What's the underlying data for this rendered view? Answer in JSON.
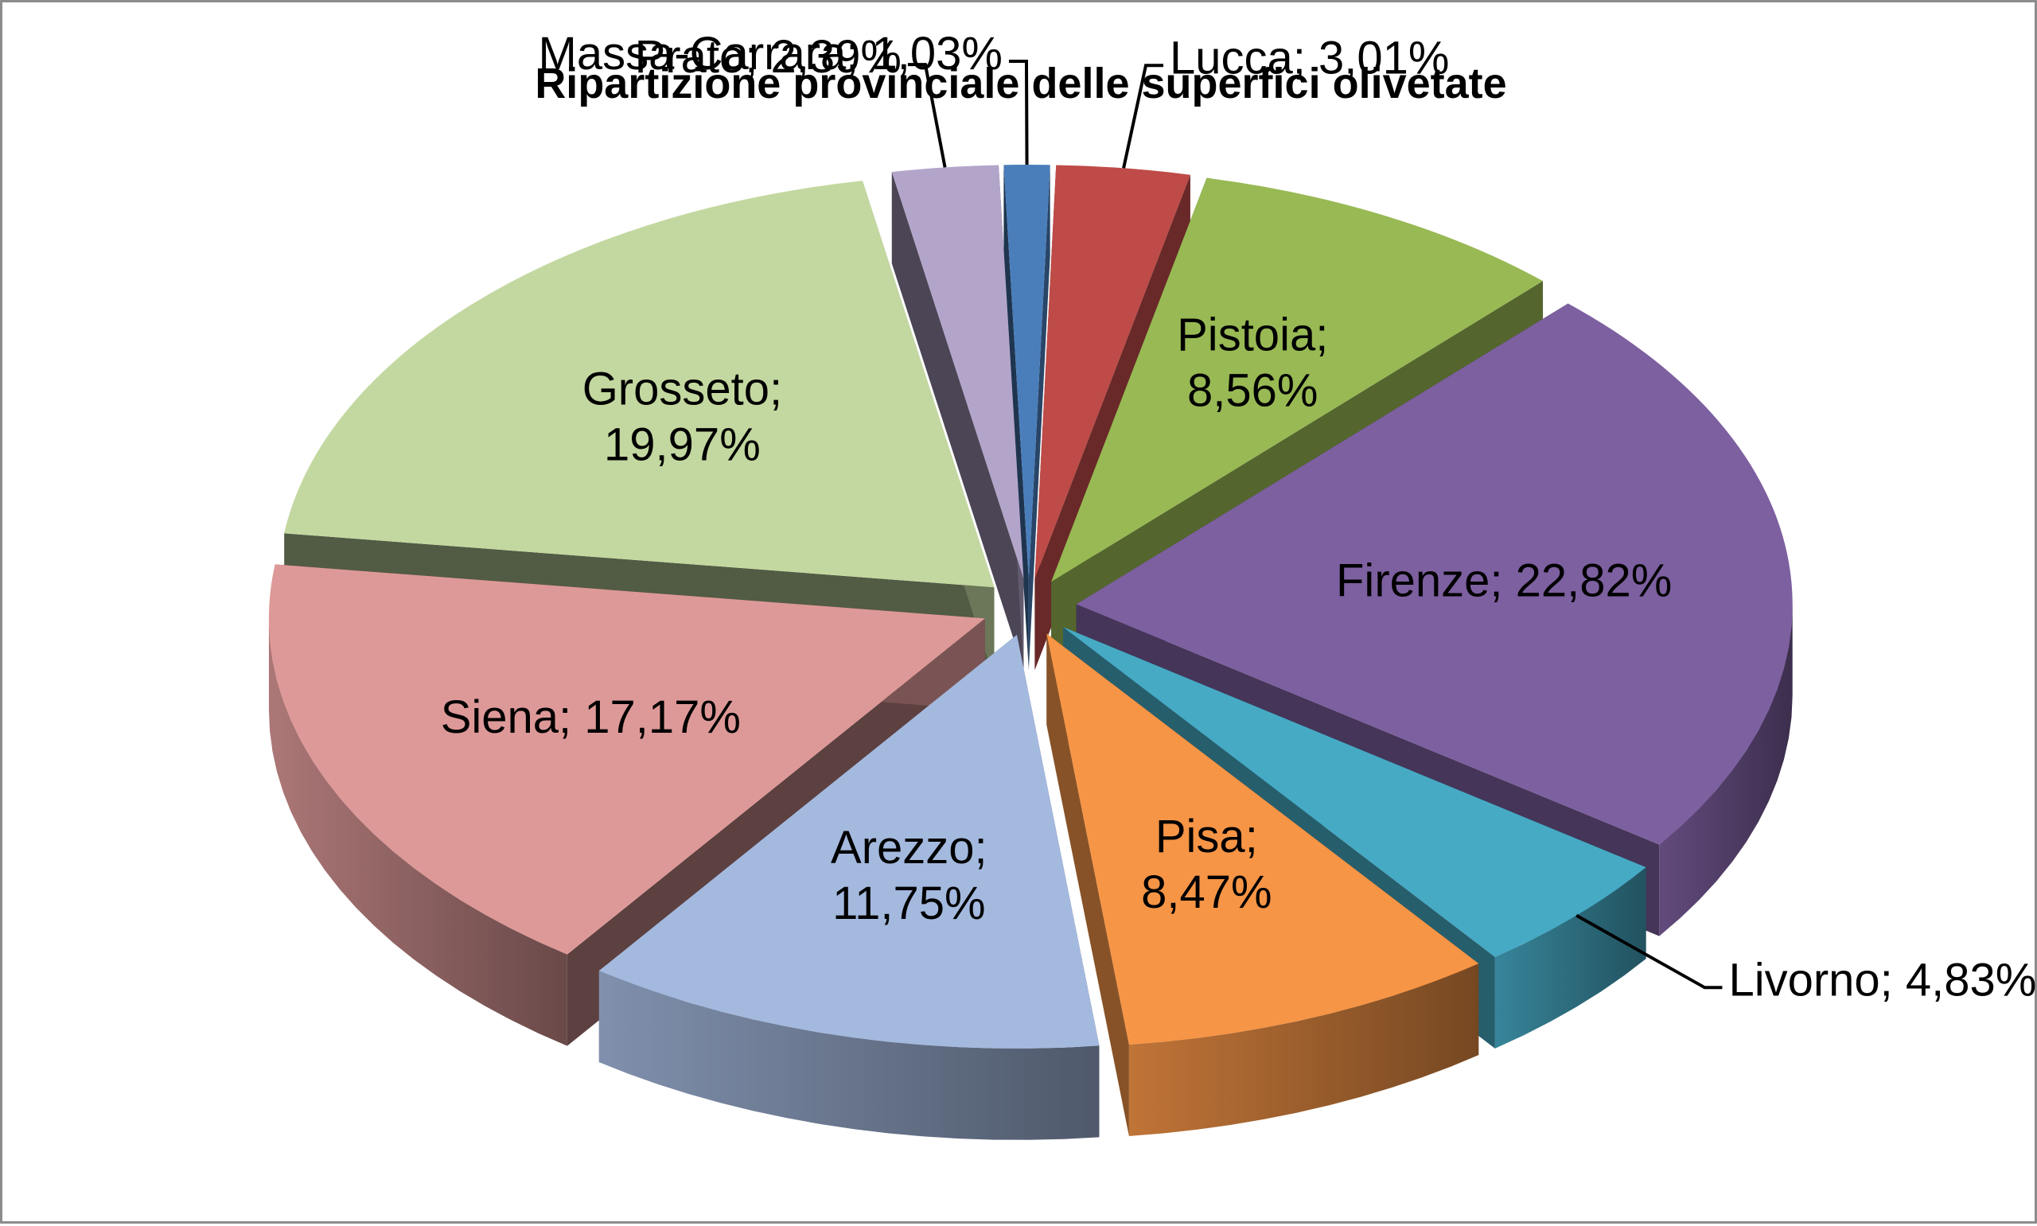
{
  "chart_data": {
    "type": "pie",
    "style": "3d-exploded",
    "title": "Ripartizione provinciale delle superfici olivetate",
    "slices": [
      {
        "name": "Massa-Carrara",
        "value": 1.03,
        "label": "Massa-Carrara; 1,03%",
        "color": "#4A7EBB"
      },
      {
        "name": "Lucca",
        "value": 3.01,
        "label": "Lucca; 3,01%",
        "color": "#BE4B48"
      },
      {
        "name": "Pistoia",
        "value": 8.56,
        "label": "Pistoia; 8,56%",
        "color": "#98B954"
      },
      {
        "name": "Firenze",
        "value": 22.82,
        "label": "Firenze; 22,82%",
        "color": "#7D60A0"
      },
      {
        "name": "Livorno",
        "value": 4.83,
        "label": "Livorno; 4,83%",
        "color": "#46AAC5"
      },
      {
        "name": "Pisa",
        "value": 8.47,
        "label": "Pisa; 8,47%",
        "color": "#F69546"
      },
      {
        "name": "Arezzo",
        "value": 11.75,
        "label": "Arezzo; 11,75%",
        "color": "#A4B9DE"
      },
      {
        "name": "Siena",
        "value": 17.17,
        "label": "Siena; 17,17%",
        "color": "#DD9998"
      },
      {
        "name": "Grosseto",
        "value": 19.97,
        "label": "Grosseto; 19,97%",
        "color": "#C3D8A0"
      },
      {
        "name": "Prato",
        "value": 2.39,
        "label": "Prato; 2,39%",
        "color": "#B3A5CA"
      }
    ],
    "legend": "none",
    "data_labels": "category; percentage"
  }
}
